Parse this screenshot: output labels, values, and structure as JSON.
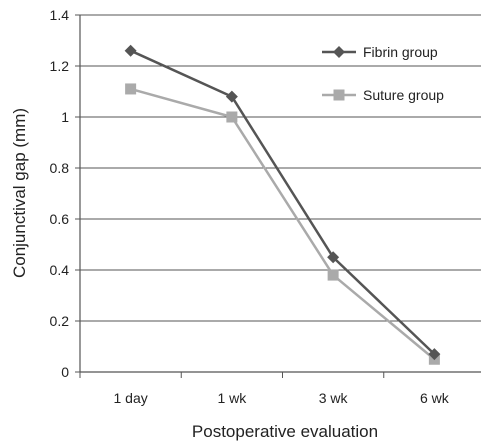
{
  "chart_data": {
    "type": "line",
    "categories": [
      "1 day",
      "1 wk",
      "3 wk",
      "6 wk"
    ],
    "series": [
      {
        "name": "Fibrin group",
        "values": [
          1.26,
          1.08,
          0.45,
          0.07
        ],
        "color": "#555555",
        "marker": "diamond"
      },
      {
        "name": "Suture group",
        "values": [
          1.11,
          1.0,
          0.38,
          0.05
        ],
        "color": "#aaaaaa",
        "marker": "square"
      }
    ],
    "xlabel": "Postoperative evaluation",
    "ylabel": "Conjunctival gap (mm)",
    "ylim": [
      0,
      1.4
    ],
    "yticks": [
      "0",
      "0.2",
      "0.4",
      "0.6",
      "0.8",
      "1",
      "1.2",
      "1.4"
    ],
    "grid": true,
    "legend_position": "top-right"
  }
}
